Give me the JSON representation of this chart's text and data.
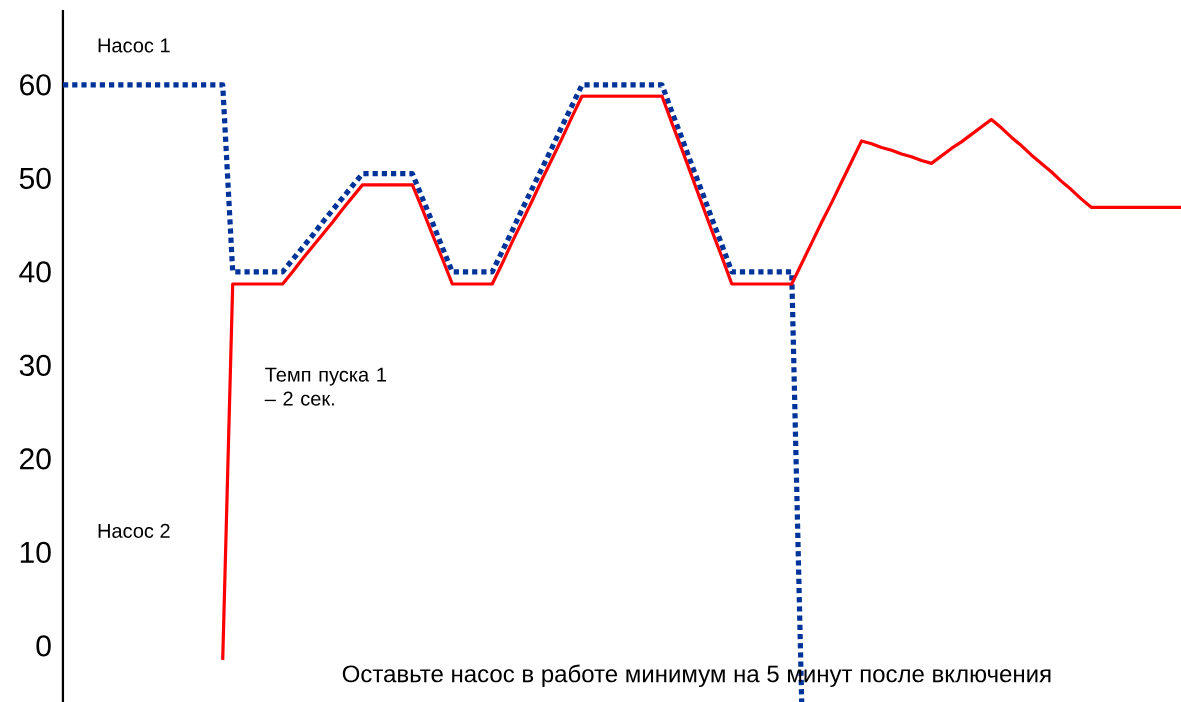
{
  "chart_data": {
    "type": "line",
    "ylim": [
      -6,
      68
    ],
    "yticks": [
      0,
      10,
      20,
      30,
      40,
      50,
      60
    ],
    "tick_labels": "y",
    "legend": false,
    "grid": false,
    "marker": "none",
    "categories": [
      null,
      null,
      null,
      null,
      null,
      null,
      null,
      null,
      null,
      null,
      null,
      null,
      null,
      null,
      null,
      null,
      null,
      null,
      null,
      null,
      null,
      null,
      null,
      null,
      null,
      null,
      null,
      null,
      null,
      null,
      null,
      null,
      null,
      null,
      null,
      null,
      null,
      null,
      null,
      null,
      null,
      null,
      null,
      null,
      null,
      null,
      null,
      null,
      null,
      null,
      null,
      null,
      null,
      null,
      null,
      null,
      null,
      null,
      null,
      null,
      null,
      null,
      null,
      null,
      null,
      null,
      null,
      null,
      null,
      null,
      null,
      null,
      null,
      null,
      null,
      null,
      null,
      null,
      null,
      null,
      null,
      null,
      null,
      null,
      null,
      null,
      null,
      null,
      null,
      null,
      null,
      null,
      null,
      null,
      null,
      null,
      null,
      null,
      null,
      null,
      null,
      null,
      null,
      null,
      null,
      null,
      null,
      null,
      null,
      null,
      null,
      null,
      null
    ],
    "series": [
      {
        "name": "Насос 1",
        "color": "#003399",
        "line_style": "dotted",
        "values": [
          60,
          60,
          60,
          60,
          60,
          60,
          60,
          60,
          60,
          60,
          60,
          60,
          60,
          60,
          60,
          60,
          60,
          40,
          40,
          40,
          40,
          40,
          40,
          41.3,
          42.6,
          43.9,
          45.3,
          46.6,
          47.9,
          49.2,
          50.5,
          50.5,
          50.5,
          50.5,
          50.5,
          50.5,
          47.9,
          45.3,
          42.6,
          40,
          40,
          40,
          40,
          40,
          42.2,
          44.4,
          46.7,
          48.9,
          51.1,
          53.3,
          55.6,
          57.8,
          60,
          60,
          60,
          60,
          60,
          60,
          60,
          60,
          60,
          57.1,
          54.3,
          51.4,
          48.6,
          45.7,
          42.9,
          40,
          40,
          40,
          40,
          40,
          40,
          40,
          -6,
          null,
          null,
          null,
          null,
          null,
          null,
          null,
          null,
          null,
          null,
          null,
          null,
          null,
          null,
          null,
          null,
          null,
          null,
          null,
          null,
          null,
          null,
          null,
          null,
          null,
          null,
          null,
          null,
          null,
          null,
          null,
          null,
          null,
          null,
          null,
          null,
          null,
          null
        ]
      },
      {
        "name": "Насос 2",
        "color": "#ff0000",
        "line_style": "solid",
        "values": [
          null,
          null,
          null,
          null,
          null,
          null,
          null,
          null,
          null,
          null,
          null,
          null,
          null,
          null,
          null,
          null,
          -1.5,
          38.7,
          38.7,
          38.7,
          38.7,
          38.7,
          38.7,
          40.0,
          41.4,
          42.7,
          44.0,
          45.3,
          46.7,
          48.0,
          49.3,
          49.3,
          49.3,
          49.3,
          49.3,
          49.3,
          46.7,
          44.0,
          41.4,
          38.7,
          38.7,
          38.7,
          38.7,
          38.7,
          40.9,
          43.2,
          45.4,
          47.6,
          49.9,
          52.1,
          54.3,
          56.6,
          58.8,
          58.8,
          58.8,
          58.8,
          58.8,
          58.8,
          58.8,
          58.8,
          58.8,
          55.9,
          53.1,
          50.2,
          47.3,
          44.4,
          41.6,
          38.7,
          38.7,
          38.7,
          38.7,
          38.7,
          38.7,
          38.7,
          40.9,
          43.1,
          45.3,
          47.4,
          49.6,
          51.8,
          54,
          53.7,
          53.3,
          53.0,
          52.6,
          52.3,
          51.9,
          51.6,
          52.4,
          53.2,
          53.9,
          54.7,
          55.5,
          56.3,
          55.4,
          54.4,
          53.5,
          52.5,
          51.6,
          50.7,
          49.7,
          48.8,
          47.8,
          46.9,
          46.9,
          46.9,
          46.9,
          46.9,
          46.9,
          46.9,
          46.9,
          46.9,
          46.9
        ]
      }
    ],
    "annotations": [
      "Темп пуска 1 – 2 сек.",
      "Оставьте насос в работе минимум на 5 минут после включения"
    ]
  }
}
